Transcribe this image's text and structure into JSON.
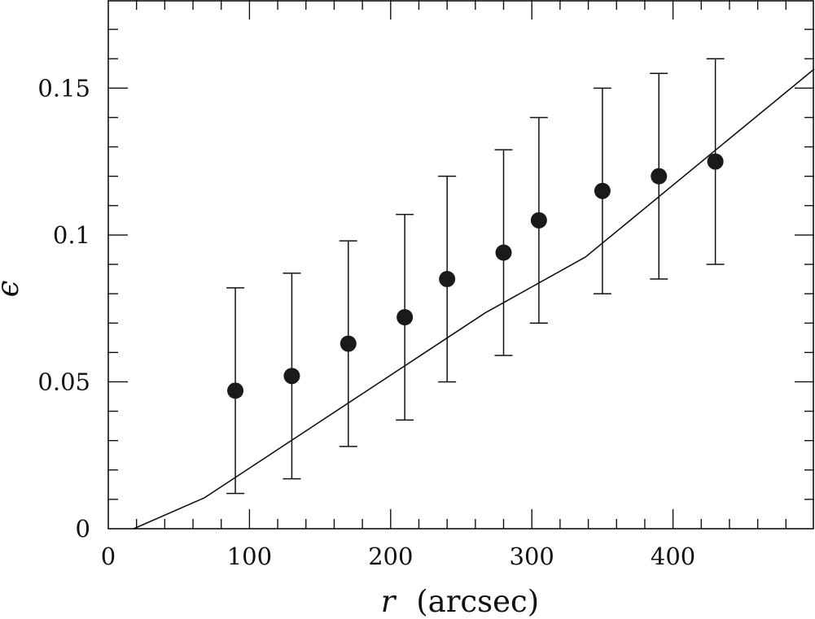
{
  "chart_data": {
    "type": "scatter",
    "title": "",
    "xlabel": "r",
    "xlabel_unit": "(arcsec)",
    "ylabel": "ϵ",
    "xlim": [
      0,
      500
    ],
    "ylim": [
      0,
      0.18
    ],
    "x_ticks": [
      {
        "value": 0,
        "label": "0"
      },
      {
        "value": 100,
        "label": "100"
      },
      {
        "value": 200,
        "label": "200"
      },
      {
        "value": 300,
        "label": "300"
      },
      {
        "value": 400,
        "label": "400"
      }
    ],
    "y_ticks": [
      {
        "value": 0,
        "label": "0"
      },
      {
        "value": 0.05,
        "label": "0.05"
      },
      {
        "value": 0.1,
        "label": "0.1"
      },
      {
        "value": 0.15,
        "label": "0.15"
      }
    ],
    "x_minor_step": 20,
    "y_minor_step": 0.01,
    "grid": false,
    "points": [
      {
        "x": 90,
        "y": 0.047,
        "err_low": 0.012,
        "err_high": 0.082
      },
      {
        "x": 130,
        "y": 0.052,
        "err_low": 0.017,
        "err_high": 0.087
      },
      {
        "x": 170,
        "y": 0.063,
        "err_low": 0.028,
        "err_high": 0.098
      },
      {
        "x": 210,
        "y": 0.072,
        "err_low": 0.037,
        "err_high": 0.107
      },
      {
        "x": 240,
        "y": 0.085,
        "err_low": 0.05,
        "err_high": 0.12
      },
      {
        "x": 280,
        "y": 0.094,
        "err_low": 0.059,
        "err_high": 0.129
      },
      {
        "x": 305,
        "y": 0.105,
        "err_low": 0.07,
        "err_high": 0.14
      },
      {
        "x": 350,
        "y": 0.115,
        "err_low": 0.08,
        "err_high": 0.15
      },
      {
        "x": 390,
        "y": 0.12,
        "err_low": 0.085,
        "err_high": 0.155
      },
      {
        "x": 430,
        "y": 0.125,
        "err_low": 0.09,
        "err_high": 0.16
      }
    ],
    "model_line": {
      "x": [
        18,
        68,
        267,
        338,
        500
      ],
      "y": [
        0,
        0.0105,
        0.0735,
        0.0925,
        0.1565
      ]
    }
  }
}
